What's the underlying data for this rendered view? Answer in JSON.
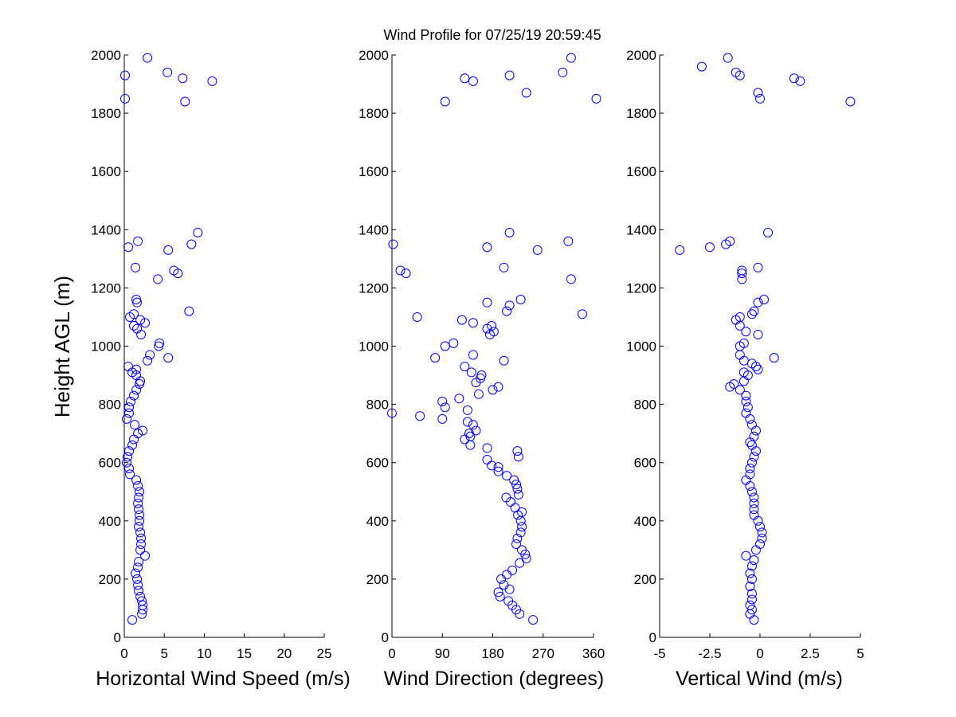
{
  "title": "Wind Profile for  07/25/19 20:59:45",
  "ylabel": "Height AGL (m)",
  "colors": {
    "marker": "#0000ff",
    "axes": "#000000",
    "background": "#ffffff"
  },
  "chart_data": [
    {
      "type": "scatter",
      "xlabel": "Horizontal Wind Speed (m/s)",
      "ylabel": "Height AGL (m)",
      "xlim": [
        0,
        25
      ],
      "ylim": [
        0,
        2000
      ],
      "xticks": [
        "0",
        "5",
        "10",
        "15",
        "20",
        "25"
      ],
      "yticks": [
        "0",
        "200",
        "400",
        "600",
        "800",
        "1000",
        "1200",
        "1400",
        "1600",
        "1800",
        "2000"
      ],
      "grid": false,
      "marker": "open-circle",
      "points": [
        [
          1.0,
          60
        ],
        [
          2.2,
          80
        ],
        [
          2.3,
          95
        ],
        [
          2.3,
          110
        ],
        [
          2.2,
          125
        ],
        [
          2.0,
          140
        ],
        [
          1.8,
          160
        ],
        [
          1.7,
          180
        ],
        [
          1.6,
          200
        ],
        [
          1.4,
          220
        ],
        [
          1.7,
          240
        ],
        [
          1.8,
          260
        ],
        [
          2.6,
          280
        ],
        [
          2.0,
          300
        ],
        [
          2.1,
          320
        ],
        [
          2.1,
          340
        ],
        [
          2.0,
          360
        ],
        [
          1.8,
          380
        ],
        [
          1.9,
          400
        ],
        [
          1.9,
          420
        ],
        [
          1.8,
          440
        ],
        [
          1.7,
          460
        ],
        [
          1.8,
          480
        ],
        [
          1.9,
          500
        ],
        [
          1.7,
          520
        ],
        [
          1.5,
          540
        ],
        [
          0.7,
          560
        ],
        [
          0.6,
          580
        ],
        [
          0.3,
          600
        ],
        [
          0.4,
          620
        ],
        [
          0.6,
          640
        ],
        [
          1.0,
          660
        ],
        [
          1.2,
          680
        ],
        [
          1.7,
          700
        ],
        [
          2.3,
          710
        ],
        [
          1.3,
          730
        ],
        [
          0.3,
          750
        ],
        [
          0.6,
          770
        ],
        [
          0.6,
          790
        ],
        [
          0.8,
          810
        ],
        [
          1.2,
          830
        ],
        [
          1.5,
          850
        ],
        [
          1.9,
          870
        ],
        [
          2.0,
          880
        ],
        [
          1.5,
          900
        ],
        [
          1.0,
          910
        ],
        [
          1.5,
          920
        ],
        [
          0.5,
          930
        ],
        [
          2.9,
          950
        ],
        [
          5.5,
          960
        ],
        [
          3.2,
          970
        ],
        [
          4.3,
          1000
        ],
        [
          4.4,
          1010
        ],
        [
          2.1,
          1040
        ],
        [
          1.6,
          1060
        ],
        [
          1.2,
          1070
        ],
        [
          2.6,
          1080
        ],
        [
          2.0,
          1090
        ],
        [
          0.7,
          1100
        ],
        [
          1.2,
          1110
        ],
        [
          8.1,
          1120
        ],
        [
          1.6,
          1150
        ],
        [
          1.5,
          1160
        ],
        [
          4.2,
          1230
        ],
        [
          6.7,
          1250
        ],
        [
          6.2,
          1260
        ],
        [
          1.4,
          1270
        ],
        [
          5.5,
          1330
        ],
        [
          0.5,
          1340
        ],
        [
          8.4,
          1350
        ],
        [
          1.7,
          1360
        ],
        [
          9.2,
          1390
        ],
        [
          7.6,
          1840
        ],
        [
          0.1,
          1850
        ],
        [
          11.0,
          1910
        ],
        [
          7.3,
          1920
        ],
        [
          0.1,
          1930
        ],
        [
          5.4,
          1940
        ],
        [
          2.9,
          1990
        ]
      ]
    },
    {
      "type": "scatter",
      "xlabel": "Wind Direction (degrees)",
      "ylabel": "",
      "xlim": [
        0,
        360
      ],
      "ylim": [
        0,
        2000
      ],
      "xticks": [
        "0",
        "90",
        "180",
        "270",
        "360"
      ],
      "yticks": [
        "0",
        "200",
        "400",
        "600",
        "800",
        "1000",
        "1200",
        "1400",
        "1600",
        "1800",
        "2000"
      ],
      "grid": false,
      "marker": "open-circle",
      "points": [
        [
          252,
          60
        ],
        [
          228,
          80
        ],
        [
          222,
          95
        ],
        [
          215,
          110
        ],
        [
          208,
          125
        ],
        [
          193,
          140
        ],
        [
          190,
          155
        ],
        [
          210,
          165
        ],
        [
          200,
          180
        ],
        [
          195,
          200
        ],
        [
          205,
          215
        ],
        [
          215,
          230
        ],
        [
          228,
          255
        ],
        [
          240,
          270
        ],
        [
          238,
          285
        ],
        [
          232,
          300
        ],
        [
          222,
          320
        ],
        [
          224,
          340
        ],
        [
          230,
          360
        ],
        [
          232,
          380
        ],
        [
          230,
          400
        ],
        [
          225,
          420
        ],
        [
          232,
          430
        ],
        [
          220,
          445
        ],
        [
          212,
          465
        ],
        [
          204,
          480
        ],
        [
          226,
          490
        ],
        [
          224,
          510
        ],
        [
          222,
          525
        ],
        [
          218,
          540
        ],
        [
          205,
          555
        ],
        [
          190,
          570
        ],
        [
          190,
          585
        ],
        [
          178,
          590
        ],
        [
          170,
          610
        ],
        [
          226,
          620
        ],
        [
          224,
          640
        ],
        [
          170,
          650
        ],
        [
          140,
          660
        ],
        [
          130,
          680
        ],
        [
          140,
          690
        ],
        [
          138,
          700
        ],
        [
          150,
          710
        ],
        [
          145,
          730
        ],
        [
          135,
          740
        ],
        [
          90,
          750
        ],
        [
          50,
          760
        ],
        [
          0,
          770
        ],
        [
          135,
          780
        ],
        [
          95,
          790
        ],
        [
          90,
          810
        ],
        [
          120,
          820
        ],
        [
          155,
          835
        ],
        [
          180,
          850
        ],
        [
          190,
          860
        ],
        [
          150,
          875
        ],
        [
          158,
          890
        ],
        [
          160,
          900
        ],
        [
          142,
          910
        ],
        [
          130,
          930
        ],
        [
          200,
          950
        ],
        [
          77,
          960
        ],
        [
          145,
          970
        ],
        [
          110,
          1010
        ],
        [
          95,
          1000
        ],
        [
          175,
          1040
        ],
        [
          182,
          1050
        ],
        [
          170,
          1060
        ],
        [
          178,
          1070
        ],
        [
          125,
          1090
        ],
        [
          145,
          1080
        ],
        [
          45,
          1100
        ],
        [
          340,
          1110
        ],
        [
          205,
          1120
        ],
        [
          210,
          1140
        ],
        [
          170,
          1150
        ],
        [
          230,
          1160
        ],
        [
          320,
          1230
        ],
        [
          25,
          1250
        ],
        [
          15,
          1260
        ],
        [
          200,
          1270
        ],
        [
          260,
          1330
        ],
        [
          170,
          1340
        ],
        [
          2,
          1350
        ],
        [
          315,
          1360
        ],
        [
          210,
          1390
        ],
        [
          95,
          1840
        ],
        [
          365,
          1850
        ],
        [
          240,
          1870
        ],
        [
          145,
          1910
        ],
        [
          130,
          1920
        ],
        [
          210,
          1930
        ],
        [
          305,
          1940
        ],
        [
          320,
          1990
        ]
      ]
    },
    {
      "type": "scatter",
      "xlabel": "Vertical Wind (m/s)",
      "ylabel": "",
      "xlim": [
        -5,
        5
      ],
      "ylim": [
        0,
        2000
      ],
      "xticks": [
        "-5",
        "-2.5",
        "0",
        "2.5",
        "5"
      ],
      "yticks": [
        "0",
        "200",
        "400",
        "600",
        "800",
        "1000",
        "1200",
        "1400",
        "1600",
        "1800",
        "2000"
      ],
      "grid": false,
      "marker": "open-circle",
      "points": [
        [
          -0.3,
          60
        ],
        [
          -0.5,
          80
        ],
        [
          -0.4,
          95
        ],
        [
          -0.5,
          110
        ],
        [
          -0.4,
          130
        ],
        [
          -0.4,
          150
        ],
        [
          -0.5,
          175
        ],
        [
          -0.4,
          200
        ],
        [
          -0.5,
          220
        ],
        [
          -0.4,
          245
        ],
        [
          -0.3,
          265
        ],
        [
          -0.7,
          280
        ],
        [
          -0.2,
          300
        ],
        [
          0.0,
          320
        ],
        [
          0.1,
          340
        ],
        [
          0.1,
          360
        ],
        [
          0.0,
          380
        ],
        [
          -0.1,
          400
        ],
        [
          -0.3,
          420
        ],
        [
          -0.3,
          440
        ],
        [
          -0.3,
          460
        ],
        [
          -0.3,
          480
        ],
        [
          -0.4,
          500
        ],
        [
          -0.5,
          520
        ],
        [
          -0.7,
          540
        ],
        [
          -0.5,
          560
        ],
        [
          -0.5,
          580
        ],
        [
          -0.4,
          600
        ],
        [
          -0.3,
          620
        ],
        [
          -0.2,
          640
        ],
        [
          -0.4,
          660
        ],
        [
          -0.5,
          670
        ],
        [
          -0.3,
          690
        ],
        [
          -0.2,
          710
        ],
        [
          -0.4,
          730
        ],
        [
          -0.5,
          750
        ],
        [
          -0.7,
          770
        ],
        [
          -0.6,
          790
        ],
        [
          -0.7,
          810
        ],
        [
          -0.7,
          830
        ],
        [
          -1.0,
          850
        ],
        [
          -1.5,
          860
        ],
        [
          -1.3,
          870
        ],
        [
          -0.8,
          880
        ],
        [
          -0.6,
          900
        ],
        [
          -0.8,
          910
        ],
        [
          -0.1,
          920
        ],
        [
          -0.2,
          930
        ],
        [
          -0.4,
          940
        ],
        [
          -0.8,
          950
        ],
        [
          0.7,
          960
        ],
        [
          -1.0,
          970
        ],
        [
          -0.8,
          1010
        ],
        [
          -1.0,
          1000
        ],
        [
          -0.1,
          1040
        ],
        [
          -0.7,
          1050
        ],
        [
          -1.0,
          1070
        ],
        [
          -1.2,
          1090
        ],
        [
          -1.0,
          1100
        ],
        [
          -0.4,
          1110
        ],
        [
          -0.3,
          1120
        ],
        [
          -0.1,
          1150
        ],
        [
          0.2,
          1160
        ],
        [
          -0.9,
          1230
        ],
        [
          -0.9,
          1250
        ],
        [
          -0.1,
          1270
        ],
        [
          -0.9,
          1260
        ],
        [
          -4.0,
          1330
        ],
        [
          -2.5,
          1340
        ],
        [
          -1.7,
          1350
        ],
        [
          -1.5,
          1360
        ],
        [
          0.4,
          1390
        ],
        [
          4.5,
          1840
        ],
        [
          0.0,
          1850
        ],
        [
          -0.1,
          1870
        ],
        [
          2.0,
          1910
        ],
        [
          1.7,
          1920
        ],
        [
          -1.0,
          1930
        ],
        [
          -1.2,
          1940
        ],
        [
          -2.9,
          1960
        ],
        [
          -1.6,
          1990
        ]
      ]
    }
  ]
}
